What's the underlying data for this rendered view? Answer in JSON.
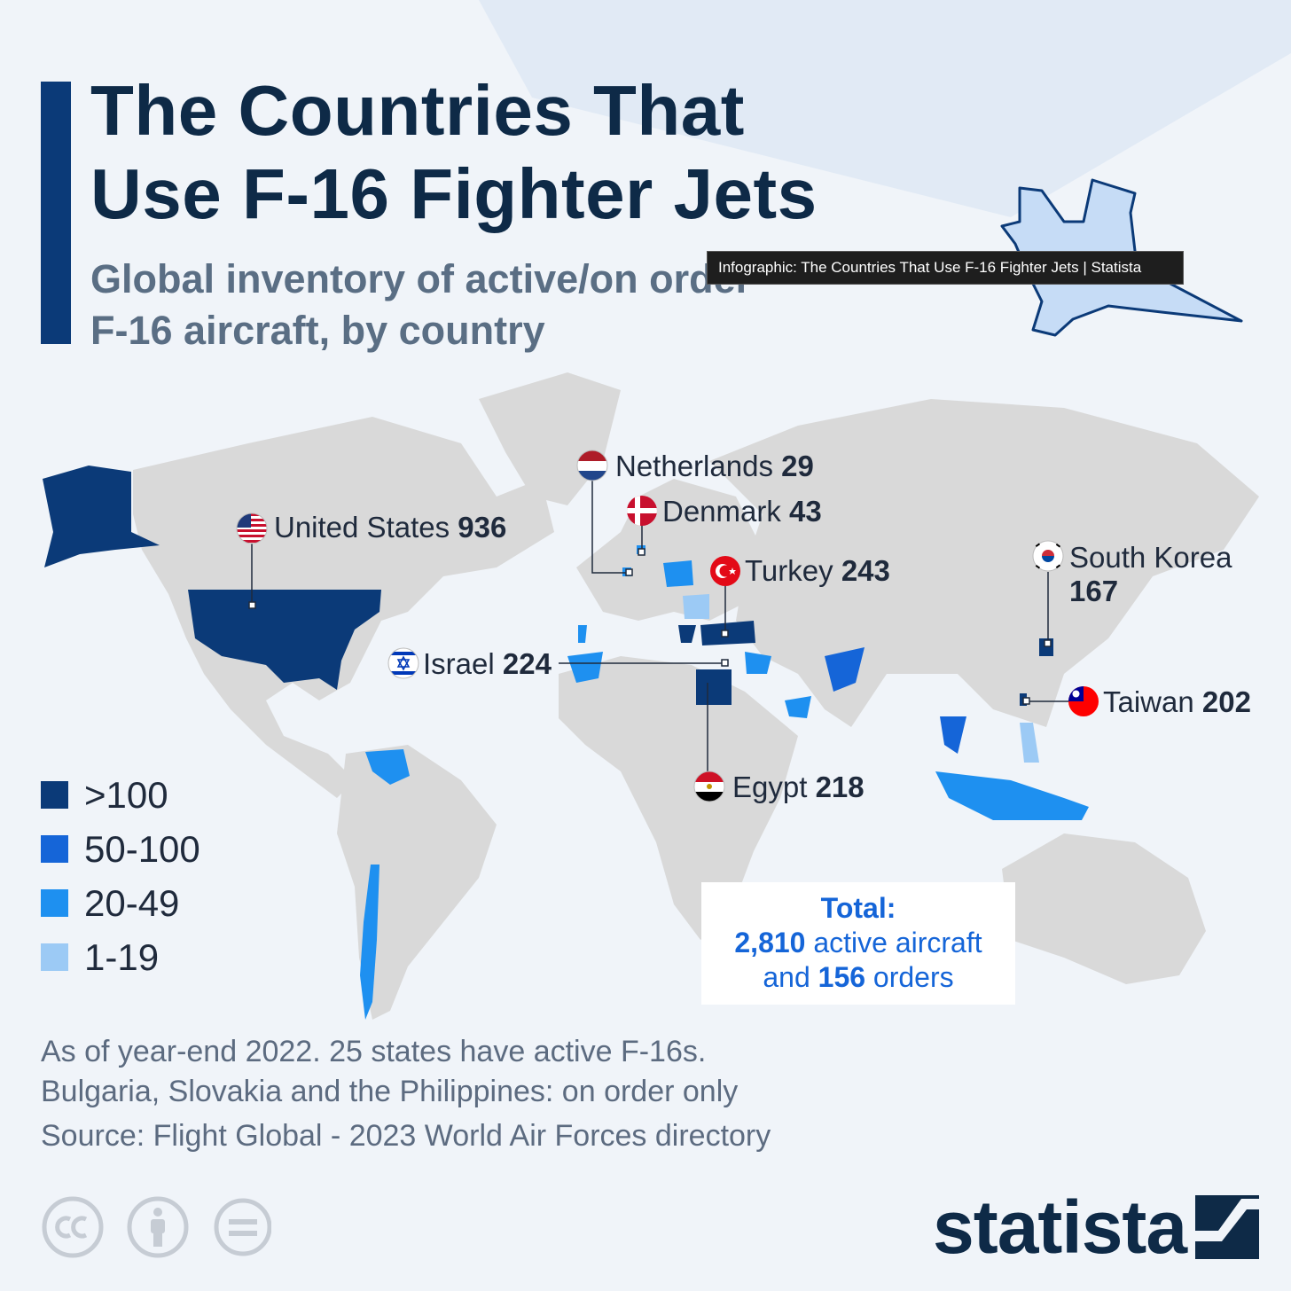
{
  "title_lines": [
    "The Countries That",
    "Use F-16 Fighter Jets"
  ],
  "subtitle_lines": [
    "Global inventory of active/on order",
    "F-16 aircraft, by country"
  ],
  "tooltip": "Infographic: The Countries That Use F-16 Fighter Jets | Statista",
  "legend": [
    {
      "label": ">100",
      "color": "#0b3a78"
    },
    {
      "label": "50-100",
      "color": "#1565d8"
    },
    {
      "label": "20-49",
      "color": "#1e90f0"
    },
    {
      "label": "1-19",
      "color": "#9ccaf5"
    }
  ],
  "chart_data": {
    "type": "choropleth-map",
    "title": "The Countries That Use F-16 Fighter Jets",
    "subtitle": "Global inventory of active/on order F-16 aircraft, by country",
    "labeled_countries": [
      {
        "country": "United States",
        "value": 936,
        "flag": "us-flag-icon"
      },
      {
        "country": "Netherlands",
        "value": 29,
        "flag": "netherlands-flag-icon"
      },
      {
        "country": "Denmark",
        "value": 43,
        "flag": "denmark-flag-icon"
      },
      {
        "country": "Turkey",
        "value": 243,
        "flag": "turkey-flag-icon"
      },
      {
        "country": "Israel",
        "value": 224,
        "flag": "israel-flag-icon"
      },
      {
        "country": "Egypt",
        "value": 218,
        "flag": "egypt-flag-icon"
      },
      {
        "country": "South Korea",
        "value": 167,
        "flag": "south-korea-flag-icon"
      },
      {
        "country": "Taiwan",
        "value": 202,
        "flag": "taiwan-flag-icon"
      }
    ],
    "legend_bins": [
      ">100",
      "50-100",
      "20-49",
      "1-19"
    ],
    "total": {
      "heading": "Total:",
      "active_value": "2,810",
      "active_label": "active aircraft",
      "orders_prefix": "and",
      "orders_value": "156",
      "orders_label": "orders"
    }
  },
  "notes": [
    "As of year-end 2022. 25 states have active F-16s.",
    "Bulgaria, Slovakia and the Philippines: on order only"
  ],
  "source": "Source: Flight Global - 2023 World Air Forces directory",
  "brand": "statista",
  "colors": {
    "land": "#d9d9d9",
    "background": "#f0f4f9",
    "tier1": "#0b3a78",
    "tier2": "#1565d8",
    "tier3": "#1e90f0",
    "tier4": "#9ccaf5"
  }
}
